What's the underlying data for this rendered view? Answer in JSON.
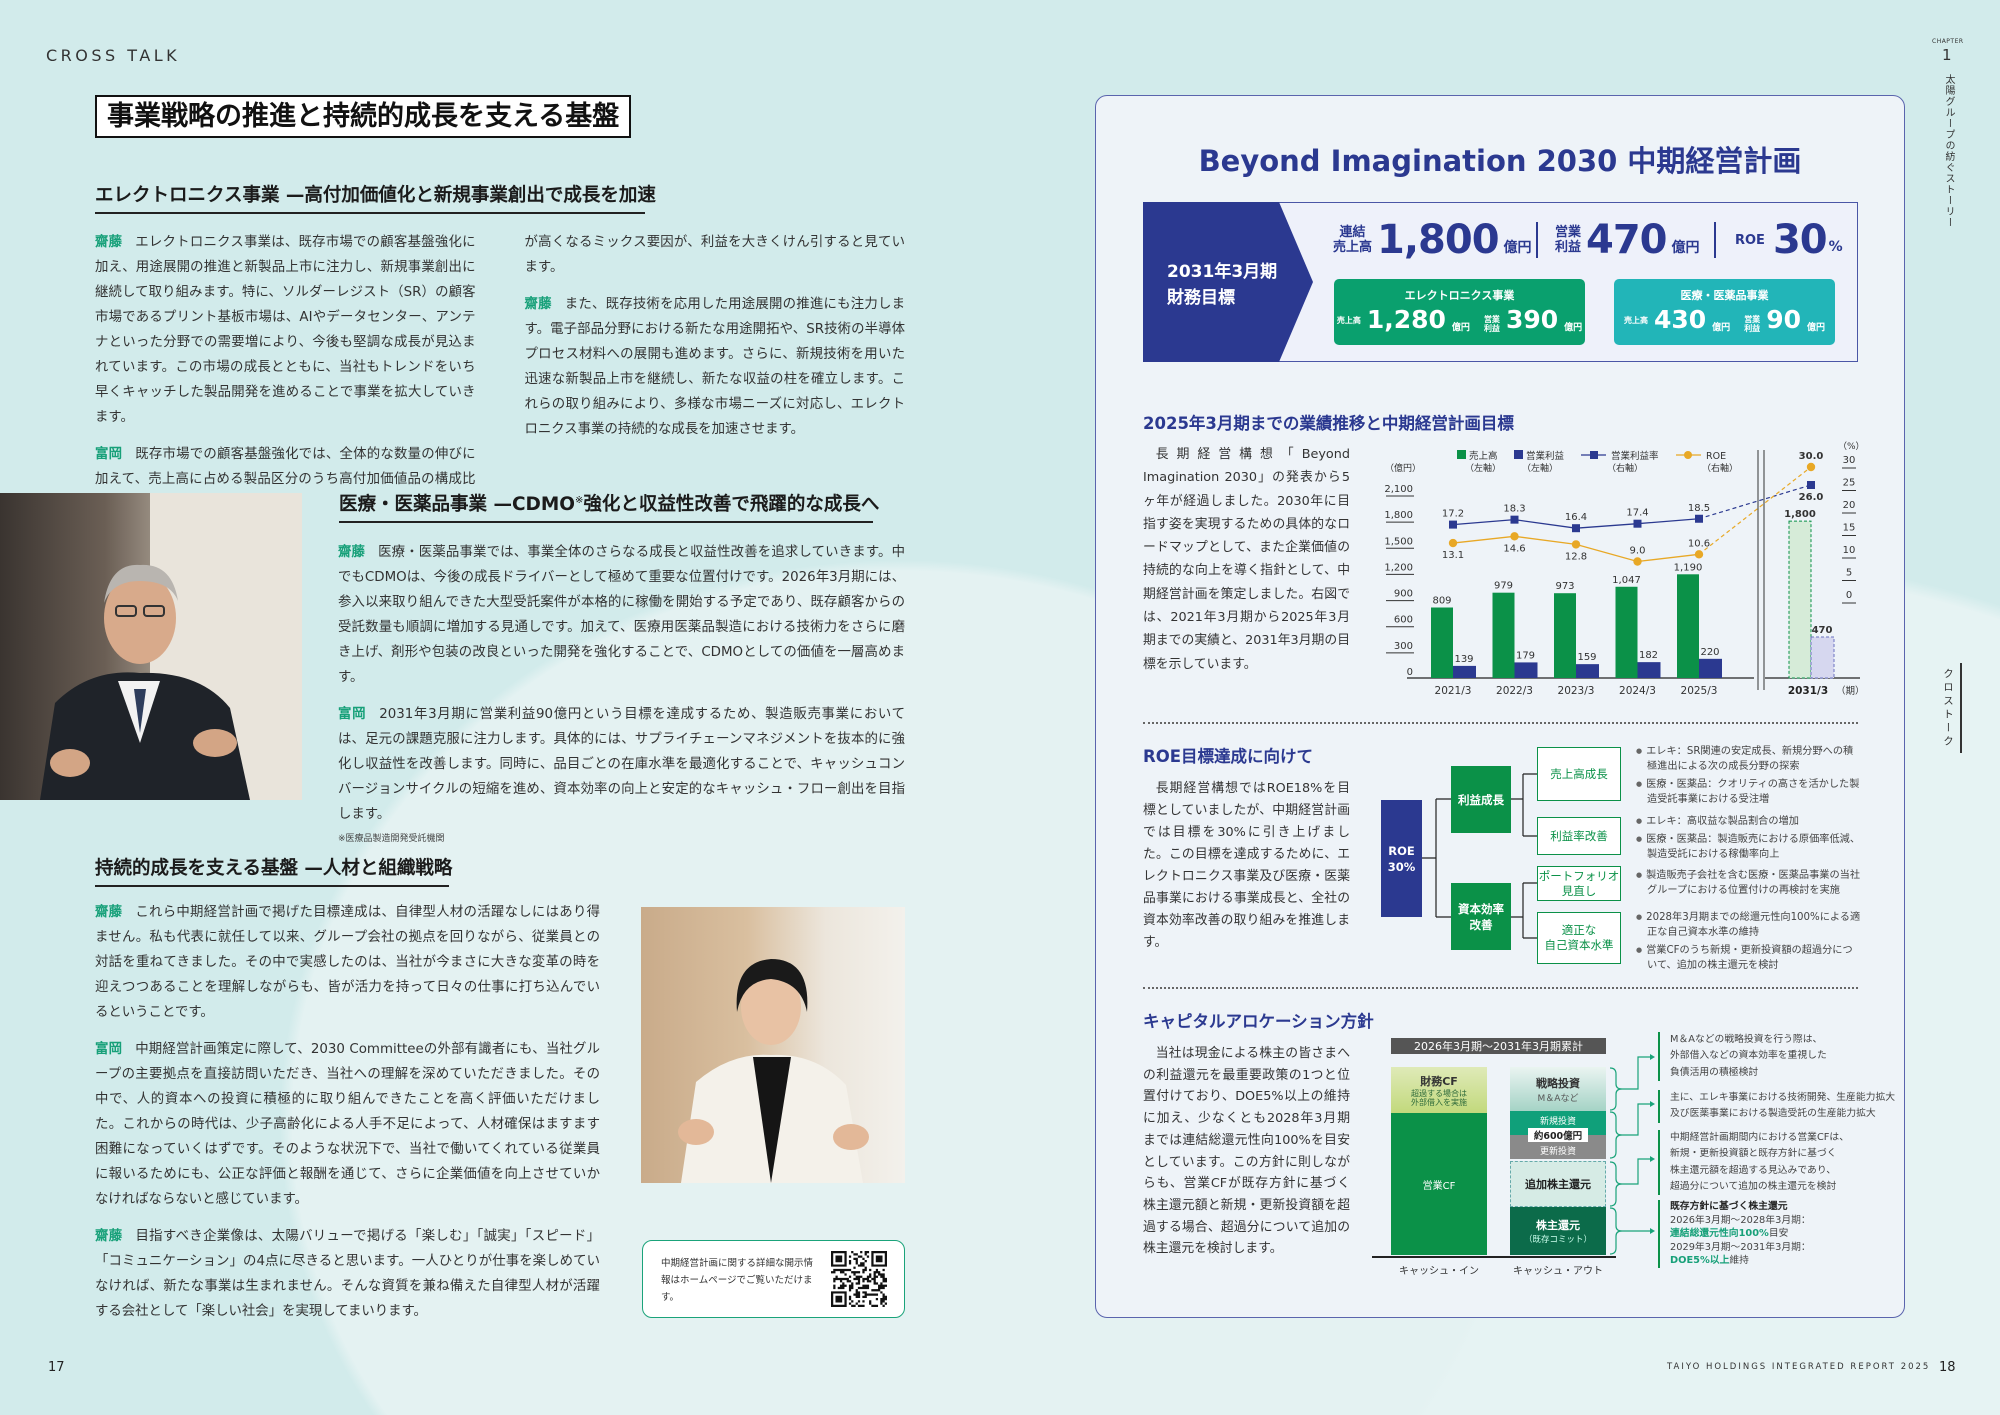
{
  "header": {
    "section_label": "CROSS TALK",
    "title": "事業戦略の推進と持続的成長を支える基盤"
  },
  "side": {
    "chapter_label": "CHAPTER",
    "chapter_number": "1",
    "chapter_title": "太陽グループの紡ぐストーリー",
    "section_tab": "クロストーク"
  },
  "section_electronics": {
    "heading": "エレクトロニクス事業 —高付加価値化と新規事業創出で成長を加速",
    "paragraphs": [
      {
        "speaker": "齋藤",
        "text": "エレクトロニクス事業は、既存市場での顧客基盤強化に加え、用途展開の推進と新製品上市に注力し、新規事業創出に継続して取り組みます。特に、ソルダーレジスト（SR）の顧客市場であるプリント基板市場は、AIやデータセンター、アンテナといった分野での需要増により、今後も堅調な成長が見込まれています。この市場の成長とともに、当社もトレンドをいち早くキャッチした製品開発を進めることで事業を拡大していきます。"
      },
      {
        "speaker": "富岡",
        "text": "既存市場での顧客基盤強化では、全体的な数量の伸びに加えて、売上高に占める製品区分のうち高付加価値品の構成比が高くなるミックス要因が、利益を大きくけん引すると見ています。"
      },
      {
        "speaker": "齋藤",
        "text": "また、既存技術を応用した用途展開の推進にも注力します。電子部品分野における新たな用途開拓や、SR技術の半導体プロセス材料への展開も進めます。さらに、新規技術を用いた迅速な新製品上市を継続し、新たな収益の柱を確立します。これらの取り組みにより、多様な市場ニーズに対応し、エレクトロニクス事業の持続的な成長を加速させます。"
      }
    ]
  },
  "section_medical": {
    "heading_main": "医療・医薬品事業 —CDMO",
    "heading_mark": "※",
    "heading_rest": "強化と収益性改善で飛躍的な成長へ",
    "paragraphs": [
      {
        "speaker": "齋藤",
        "text": "医療・医薬品事業では、事業全体のさらなる成長と収益性改善を追求していきます。中でもCDMOは、今後の成長ドライバーとして極めて重要な位置付けです。2026年3月期には、参入以来取り組んできた大型受託案件が本格的に稼働を開始する予定であり、既存顧客からの受託数量も順調に増加する見通しです。加えて、医療用医薬品製造における技術力をさらに磨き上げ、剤形や包装の改良といった開発を強化することで、CDMOとしての価値を一層高めます。"
      },
      {
        "speaker": "富岡",
        "text": "2031年3月期に営業利益90億円という目標を達成するため、製造販売事業においては、足元の課題克服に注力します。具体的には、サプライチェーンマネジメントを抜本的に強化し収益性を改善します。同時に、品目ごとの在庫水準を最適化することで、キャッシュコンバージョンサイクルの短縮を進め、資本効率の向上と安定的なキャッシュ・フロー創出を目指します。"
      }
    ],
    "footnote": "※医療品製造開発受託機関"
  },
  "section_people": {
    "heading": "持続的成長を支える基盤 —人材と組織戦略",
    "paragraphs": [
      {
        "speaker": "齋藤",
        "text": "これら中期経営計画で掲げた目標達成は、自律型人材の活躍なしにはあり得ません。私も代表に就任して以来、グループ会社の拠点を回りながら、従業員との対話を重ねてきました。その中で実感したのは、当社が今まさに大きな変革の時を迎えつつあることを理解しながらも、皆が活力を持って日々の仕事に打ち込んでいるということです。"
      },
      {
        "speaker": "富岡",
        "text": "中期経営計画策定に際して、2030 Committeeの外部有識者にも、当社グループの主要拠点を直接訪問いただき、当社への理解を深めていただきました。その中で、人的資本への投資に積極的に取り組んできたことを高く評価いただけました。これからの時代は、少子高齢化による人手不足によって、人材確保はますます困難になっていくはずです。そのような状況下で、当社で働いてくれている従業員に報いるためにも、公正な評価と報酬を通じて、さらに企業価値を向上させていかなければならないと感じています。"
      },
      {
        "speaker": "齋藤",
        "text": "目指すべき企業像は、太陽バリューで掲げる「楽しむ」「誠実」「スピード」「コミュニケーション」の4点に尽きると思います。一人ひとりが仕事を楽しめていなければ、新たな事業は生まれません。そんな資質を兼ね備えた自律型人材が活躍する会社として「楽しい社会」を実現してまいります。"
      }
    ]
  },
  "qr_notice": {
    "text": "中期経営計画に関する詳細な開示情報はホームページでご覧いただけます。"
  },
  "footer": {
    "page_left": "17",
    "page_right": "18",
    "brand": "TAIYO HOLDINGS INTEGRATED REPORT 2025"
  },
  "plan": {
    "title": "Beyond Imagination 2030 中期経営計画",
    "targets": {
      "period": "2031年3月期",
      "label": "財務目標",
      "items": [
        {
          "label_1": "連結",
          "label_2": "売上高",
          "value": "1,800",
          "unit": "億円"
        },
        {
          "label_1": "営業",
          "label_2": "利益",
          "value": "470",
          "unit": "億円"
        },
        {
          "label_1": "ROE",
          "label_2": "",
          "value": "30",
          "unit": "%"
        }
      ],
      "segments": [
        {
          "name": "エレクトロニクス事業",
          "sales_label": "売上高",
          "sales": "1,280",
          "op_label_1": "営業",
          "op_label_2": "利益",
          "op": "390",
          "unit": "億円",
          "color": "#0aa06e"
        },
        {
          "name": "医療・医薬品事業",
          "sales_label": "売上高",
          "sales": "430",
          "op_label_1": "営業",
          "op_label_2": "利益",
          "op": "90",
          "unit": "億円",
          "color": "#22b5b8"
        }
      ]
    },
    "performance": {
      "heading": "2025年3月期までの業績推移と中期経営計画目標",
      "text": "長期経営構想「Beyond Imagination 2030」の発表から5ヶ年が経過しました。2030年に目指す姿を実現するための具体的なロードマップとして、また企業価値の持続的な向上を導く指針として、中期経営計画を策定しました。右図では、2021年3月期から2025年3月期までの実績と、2031年3月期の目標を示しています。"
    },
    "roe": {
      "heading": "ROE目標達成に向けて",
      "text": "長期経営構想ではROE18%を目標としていましたが、中期経営計画では目標を30%に引き上げました。この目標を達成するために、エレクトロニクス事業及び医療・医薬品事業における事業成長と、全社の資本効率改善の取り組みを推進します。",
      "root": "ROE\n30%",
      "branches": [
        {
          "label": "利益成長",
          "children": [
            {
              "label": "売上高成長",
              "bullets": [
                "エレキ：SR関連の安定成長、新規分野への積極進出による次の成長分野の探索",
                "医療・医薬品：クオリティの高さを活かした製造受託事業における受注増"
              ]
            },
            {
              "label": "利益率改善",
              "bullets": [
                "エレキ：高収益な製品割合の増加",
                "医療・医薬品：製造販売における原価率低減、製造受託における稼働率向上"
              ]
            }
          ]
        },
        {
          "label": "資本効率\n改善",
          "children": [
            {
              "label": "ポートフォリオ\n見直し",
              "bullets": [
                "製造販売子会社を含む医療・医薬品事業の当社グループにおける位置付けの再検討を実施"
              ]
            },
            {
              "label": "適正な\n自己資本水準",
              "bullets": [
                "2028年3月期までの総還元性向100%による適正な自己資本水準の維持",
                "営業CFのうち新規・更新投資額の超過分について、追加の株主還元を検討"
              ]
            }
          ]
        }
      ]
    },
    "capital": {
      "heading": "キャピタルアロケーション方針",
      "text": "当社は現金による株主の皆さまへの利益還元を最重要政策の1つと位置付けており、DOE5%以上の維持に加え、少なくとも2028年3月期までは連結総還元性向100%を目安としています。この方針に則しながらも、営業CFが既存方針に基づく株主還元額と新規・更新投資額を超過する場合、超過分について追加の株主還元を検討します。",
      "period": "2026年3月期～2031年3月期累計",
      "cash_in": {
        "label": "キャッシュ・イン",
        "financing_cf": "財務CF",
        "financing_note": "超過する場合は\n外部借入を実施",
        "operating_cf": "営業CF"
      },
      "cash_out": {
        "label": "キャッシュ・アウト",
        "strategic": "戦略投資",
        "strategic_note": "M＆Aなど",
        "new_invest": "新規投資",
        "invest_amount": "約600億円",
        "renewal": "更新投資",
        "additional_return": "追加株主還元",
        "return": "株主還元",
        "return_note": "（既存コミット）"
      },
      "notes": [
        [
          "M＆Aなどの戦略投資を行う際は、",
          "外部借入などの資本効率を重視した",
          "負債活用の積極検討"
        ],
        [
          "主に、エレキ事業における技術開発、生産能力拡大",
          "及び医薬事業における製造受託の生産能力拡大"
        ],
        [
          "中期経営計画期間内における営業CFは、",
          "新規・更新投資額と既存方針に基づく",
          "株主還元額を超過する見込みであり、",
          "超過分について追加の株主還元を検討"
        ]
      ],
      "policy_note": {
        "title": "既存方針に基づく株主還元",
        "line1": "2026年3月期～2028年3月期：",
        "hl1": "連結総還元性向100%",
        "tail1": "目安",
        "line2": "2029年3月期～2031年3月期：",
        "hl2": "DOE5%以上",
        "tail2": "維持"
      }
    }
  },
  "chart_data": {
    "type": "bar+line",
    "categories": [
      "2021/3",
      "2022/3",
      "2023/3",
      "2024/3",
      "2025/3",
      "2031/3"
    ],
    "x_unit": "（期）",
    "left_axis": {
      "unit": "（億円）",
      "range": [
        0,
        2100
      ],
      "ticks": [
        0,
        300,
        600,
        900,
        1200,
        1500,
        1800,
        2100
      ]
    },
    "right_axis": {
      "unit": "（%）",
      "range": [
        0,
        30
      ],
      "ticks": [
        0,
        5,
        10,
        15,
        20,
        25,
        30
      ]
    },
    "target_category": "2031/3",
    "axis_break": true,
    "series": [
      {
        "name": "売上高",
        "axis_note": "（左軸）",
        "type": "bar",
        "axis": "left",
        "color": "#0b9148",
        "values": [
          809,
          979,
          973,
          1047,
          1190,
          1800
        ],
        "labels": [
          "809",
          "979",
          "973",
          "1,047",
          "1,190",
          "1,800"
        ]
      },
      {
        "name": "営業利益",
        "axis_note": "（左軸）",
        "type": "bar",
        "axis": "left",
        "color": "#2b3990",
        "values": [
          139,
          179,
          159,
          182,
          220,
          470
        ],
        "labels": [
          "139",
          "179",
          "159",
          "182",
          "220",
          "470"
        ]
      },
      {
        "name": "営業利益率",
        "axis_note": "（右軸）",
        "type": "line",
        "axis": "right",
        "color": "#2b3990",
        "values": [
          17.2,
          18.3,
          16.4,
          17.4,
          18.5,
          26.0
        ]
      },
      {
        "name": "ROE",
        "axis_note": "（右軸）",
        "type": "line",
        "axis": "right",
        "color": "#e8a826",
        "values": [
          13.1,
          14.6,
          12.8,
          9.0,
          10.6,
          30.0
        ]
      }
    ]
  }
}
